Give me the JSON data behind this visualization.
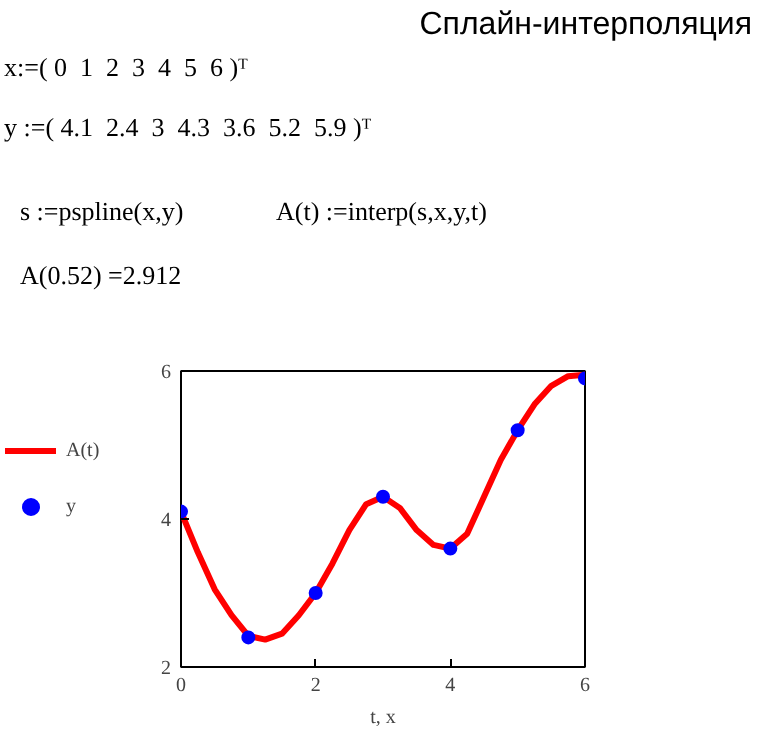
{
  "chart_data": {
    "type": "line",
    "title": "Сплайн-интерполяция",
    "annotations": [
      "x:=( 0  1  2  3  4  5  6 )ᵀ",
      "y :=( 4.1  2.4  3  4.3  3.6  5.2  5.9 )ᵀ",
      "s :=pspline(x,y)",
      "A(t) :=interp(s,x,y,t)",
      "A(0.52) =2.912"
    ],
    "xlabel": "t, x",
    "xlim": [
      0,
      6
    ],
    "xticks": [
      0,
      2,
      4,
      6
    ],
    "ylim": [
      2,
      6
    ],
    "yticks": [
      2,
      4,
      6
    ],
    "grid": false,
    "legend": "left",
    "series": [
      {
        "name": "A(t)",
        "color": "#ff0000",
        "line_style": "solid",
        "marker": "none",
        "x": [
          0,
          0.25,
          0.5,
          0.75,
          1,
          1.25,
          1.5,
          1.75,
          2,
          2.25,
          2.5,
          2.75,
          3,
          3.25,
          3.5,
          3.75,
          4,
          4.25,
          4.5,
          4.75,
          5,
          5.25,
          5.5,
          5.75,
          6
        ],
        "values": [
          4.1,
          3.55,
          3.05,
          2.7,
          2.42,
          2.37,
          2.45,
          2.7,
          3.0,
          3.4,
          3.85,
          4.2,
          4.3,
          4.15,
          3.85,
          3.65,
          3.6,
          3.8,
          4.3,
          4.8,
          5.2,
          5.55,
          5.8,
          5.93,
          5.95
        ]
      },
      {
        "name": "y",
        "type": "scatter",
        "color": "#0000ff",
        "marker": "circle",
        "x": [
          0,
          1,
          2,
          3,
          4,
          5,
          6
        ],
        "values": [
          4.1,
          2.4,
          3,
          4.3,
          3.6,
          5.2,
          5.9
        ]
      }
    ]
  }
}
